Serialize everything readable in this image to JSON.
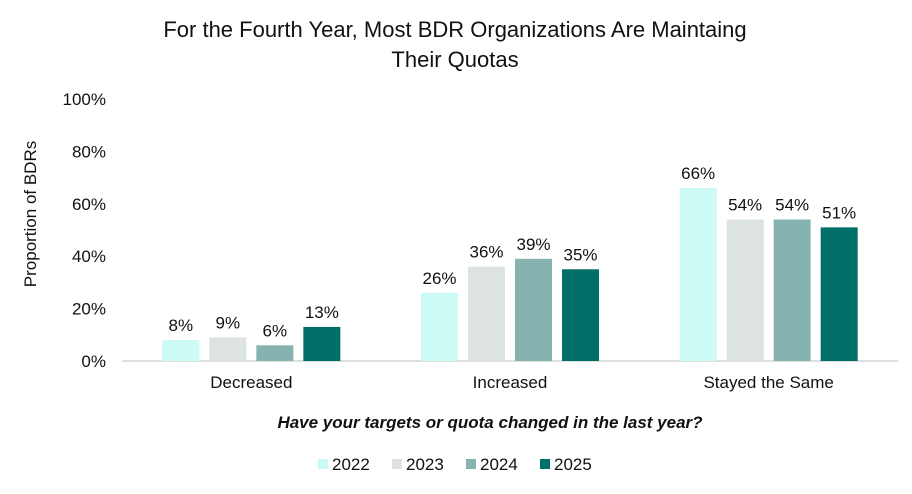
{
  "chart_data": {
    "type": "bar",
    "title": [
      "For the Fourth Year, Most BDR Organizations Are Maintaing",
      "Their Quotas"
    ],
    "xlabel": "Have your targets or quota changed in the last year?",
    "ylabel": "Proportion of BDRs",
    "ylim": [
      0,
      100
    ],
    "yticks": [
      0,
      20,
      40,
      60,
      80,
      100
    ],
    "ytick_labels": [
      "0%",
      "20%",
      "40%",
      "60%",
      "80%",
      "100%"
    ],
    "categories": [
      "Decreased",
      "Increased",
      "Stayed the Same"
    ],
    "series": [
      {
        "name": "2022",
        "color": "#ccfaf5",
        "values": [
          8,
          26,
          66
        ],
        "labels": [
          "8%",
          "26%",
          "66%"
        ]
      },
      {
        "name": "2023",
        "color": "#dce3e0",
        "values": [
          9,
          36,
          54
        ],
        "labels": [
          "9%",
          "36%",
          "54%"
        ]
      },
      {
        "name": "2024",
        "color": "#86b2af",
        "values": [
          6,
          39,
          54
        ],
        "labels": [
          "6%",
          "39%",
          "54%"
        ]
      },
      {
        "name": "2025",
        "color": "#006f68",
        "values": [
          13,
          35,
          51
        ],
        "labels": [
          "13%",
          "35%",
          "51%"
        ]
      }
    ],
    "grid": false,
    "legend_position": "bottom"
  }
}
